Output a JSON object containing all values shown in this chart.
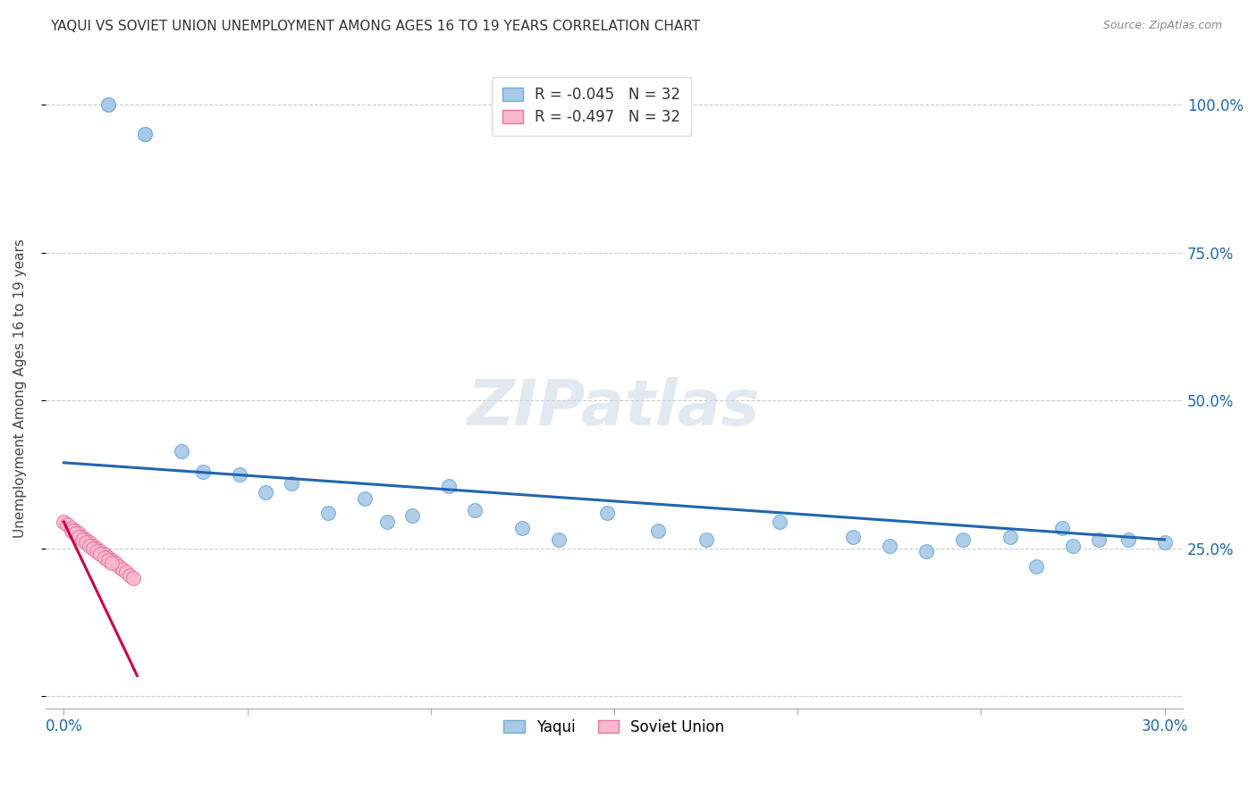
{
  "title": "YAQUI VS SOVIET UNION UNEMPLOYMENT AMONG AGES 16 TO 19 YEARS CORRELATION CHART",
  "source": "Source: ZipAtlas.com",
  "ylabel": "Unemployment Among Ages 16 to 19 years",
  "yaqui_x": [
    0.012,
    0.012,
    0.022,
    0.022,
    0.032,
    0.038,
    0.048,
    0.055,
    0.062,
    0.072,
    0.082,
    0.088,
    0.095,
    0.105,
    0.112,
    0.125,
    0.135,
    0.148,
    0.162,
    0.175,
    0.195,
    0.215,
    0.225,
    0.235,
    0.245,
    0.258,
    0.265,
    0.272,
    0.275,
    0.282,
    0.29,
    0.3
  ],
  "yaqui_y": [
    1.0,
    1.0,
    0.95,
    0.95,
    0.415,
    0.38,
    0.375,
    0.345,
    0.36,
    0.31,
    0.335,
    0.295,
    0.305,
    0.355,
    0.315,
    0.285,
    0.265,
    0.31,
    0.28,
    0.265,
    0.295,
    0.27,
    0.255,
    0.245,
    0.265,
    0.27,
    0.22,
    0.285,
    0.255,
    0.265,
    0.265,
    0.26
  ],
  "soviet_x": [
    0.0,
    0.001,
    0.002,
    0.003,
    0.004,
    0.005,
    0.006,
    0.007,
    0.008,
    0.009,
    0.01,
    0.011,
    0.012,
    0.013,
    0.014,
    0.015,
    0.016,
    0.017,
    0.018,
    0.019,
    0.002,
    0.003,
    0.004,
    0.005,
    0.006,
    0.007,
    0.008,
    0.009,
    0.01,
    0.011,
    0.012,
    0.013
  ],
  "soviet_y": [
    0.295,
    0.29,
    0.285,
    0.28,
    0.275,
    0.27,
    0.265,
    0.26,
    0.255,
    0.25,
    0.245,
    0.24,
    0.235,
    0.23,
    0.225,
    0.22,
    0.215,
    0.21,
    0.205,
    0.2,
    0.28,
    0.275,
    0.27,
    0.265,
    0.26,
    0.255,
    0.25,
    0.245,
    0.24,
    0.235,
    0.23,
    0.225
  ],
  "trend_yaqui_x0": 0.0,
  "trend_yaqui_y0": 0.395,
  "trend_yaqui_x1": 0.3,
  "trend_yaqui_y1": 0.265,
  "trend_soviet_x0": 0.0,
  "trend_soviet_y0": 0.295,
  "trend_soviet_x1": 0.02,
  "trend_soviet_y1": 0.035,
  "yaqui_color": "#a8c8e8",
  "yaqui_edge_color": "#6baed6",
  "soviet_color": "#f9b8cc",
  "soviet_edge_color": "#e377a2",
  "trend_yaqui_color": "#2166ac",
  "trend_soviet_color": "#c8004a",
  "R_yaqui": -0.045,
  "N_yaqui": 32,
  "R_soviet": -0.497,
  "N_soviet": 32,
  "legend_label_yaqui": "Yaqui",
  "legend_label_soviet": "Soviet Union",
  "background_color": "#ffffff",
  "grid_color": "#cccccc",
  "axis_color": "#2166ac",
  "title_color": "#333333",
  "source_color": "#888888",
  "marker_size": 130,
  "xlim": [
    -0.005,
    0.305
  ],
  "ylim": [
    -0.02,
    1.06
  ],
  "x_tick_positions": [
    0.0,
    0.05,
    0.1,
    0.15,
    0.2,
    0.25,
    0.3
  ],
  "x_tick_labels": [
    "0.0%",
    "",
    "",
    "",
    "",
    "",
    "30.0%"
  ],
  "y_tick_positions": [
    0.0,
    0.25,
    0.5,
    0.75,
    1.0
  ],
  "y_tick_labels_right": [
    "",
    "25.0%",
    "50.0%",
    "75.0%",
    "100.0%"
  ]
}
